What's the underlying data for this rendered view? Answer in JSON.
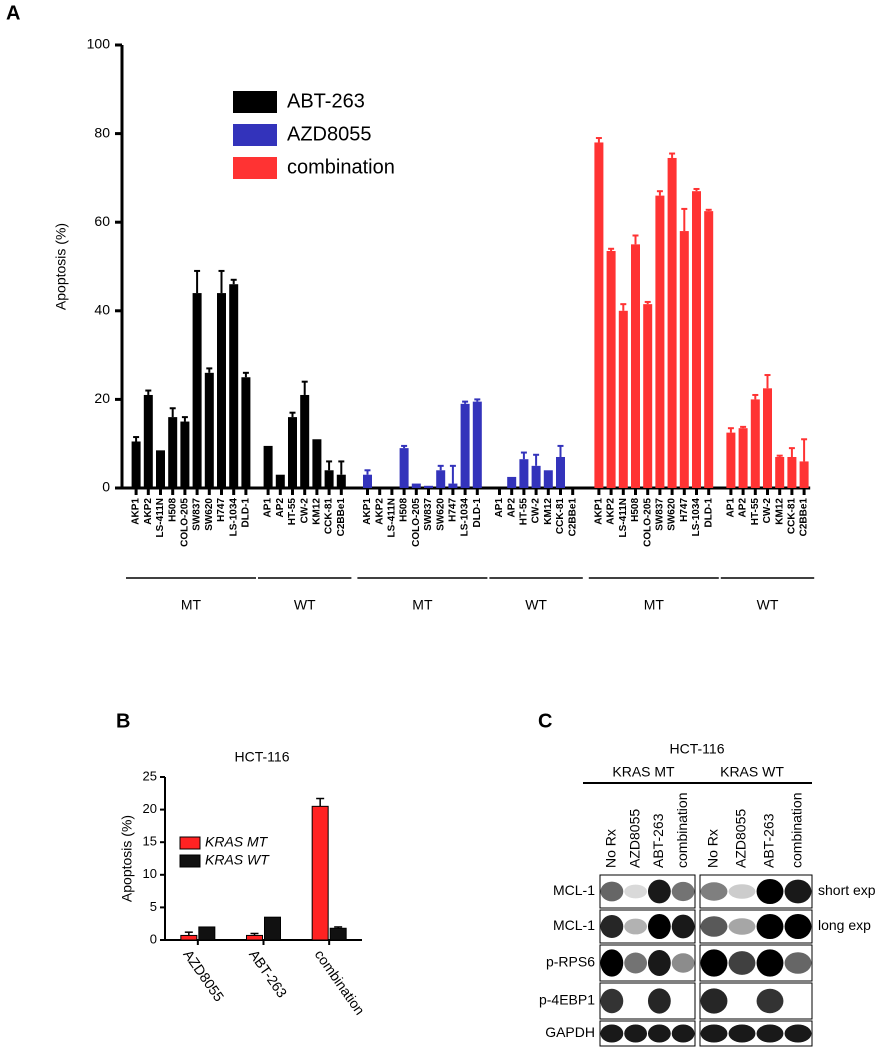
{
  "chart_data": [
    {
      "type": "bar",
      "panel": "A",
      "ylabel": "Apoptosis (%)",
      "ylim": [
        0,
        100
      ],
      "yticks": [
        0,
        20,
        40,
        60,
        80,
        100
      ],
      "categories": [
        "AKP1",
        "AKP2",
        "LS-411N",
        "H508",
        "COLO-205",
        "SW837",
        "SW620",
        "H747",
        "LS-1034",
        "DLD-1",
        "AP1",
        "AP2",
        "HT-55",
        "CW-2",
        "KM12",
        "CCK-81",
        "C2BBe1"
      ],
      "groups": [
        {
          "label": "MT",
          "size": 10
        },
        {
          "label": "WT",
          "size": 7
        }
      ],
      "series": [
        {
          "name": "ABT-263",
          "color": "#000000",
          "values": [
            10.5,
            21,
            8.5,
            16,
            15,
            44,
            26,
            44,
            46,
            25,
            9.5,
            3,
            16,
            21,
            11,
            4,
            3
          ],
          "errors": [
            1,
            1,
            0,
            2,
            1,
            5,
            1,
            5,
            1,
            1,
            0,
            0,
            1,
            3,
            0,
            2,
            3
          ]
        },
        {
          "name": "AZD8055",
          "color": "#3333bb",
          "values": [
            3,
            0,
            0,
            9,
            1,
            0.5,
            4,
            1,
            19,
            19.5,
            0,
            2.5,
            6.5,
            5,
            4,
            7,
            0
          ],
          "errors": [
            1,
            0,
            0,
            0.5,
            0,
            0,
            1,
            4,
            0.5,
            0.5,
            0,
            0,
            1.5,
            2.5,
            0,
            2.5,
            0
          ]
        },
        {
          "name": "combination",
          "color": "#ff3333",
          "values": [
            78,
            53.5,
            40,
            55,
            41.5,
            66,
            74.5,
            58,
            67,
            62.5,
            12.5,
            13.5,
            20,
            22.5,
            7,
            7,
            6
          ],
          "errors": [
            1,
            0.5,
            1.5,
            2,
            0.5,
            1,
            1,
            5,
            0.5,
            0.3,
            1,
            0.3,
            1,
            3,
            0.3,
            2,
            5
          ]
        }
      ]
    },
    {
      "type": "grouped-bar",
      "panel": "B",
      "title": "HCT-116",
      "ylabel": "Apoptosis (%)",
      "ylim": [
        0,
        25
      ],
      "yticks": [
        0,
        5,
        10,
        15,
        20,
        25
      ],
      "categories": [
        "AZD8055",
        "ABT-263",
        "combination"
      ],
      "series": [
        {
          "name": "KRAS MT",
          "color": "#ff2222",
          "values": [
            0.7,
            0.7,
            20.5
          ],
          "errors": [
            0.5,
            0.3,
            1.2
          ]
        },
        {
          "name": "KRAS WT",
          "color": "#111111",
          "values": [
            2,
            3.5,
            1.8
          ],
          "errors": [
            0,
            0,
            0.2
          ]
        }
      ]
    }
  ],
  "blot": {
    "panel": "C",
    "title": "HCT-116",
    "groups": [
      "KRAS MT",
      "KRAS WT"
    ],
    "lanes": [
      "No Rx",
      "AZD8055",
      "ABT-263",
      "combination"
    ],
    "rows": [
      "MCL-1",
      "MCL-1",
      "p-RPS6",
      "p-4EBP1",
      "GAPDH"
    ],
    "notes": [
      "short exp",
      "long exp"
    ]
  }
}
